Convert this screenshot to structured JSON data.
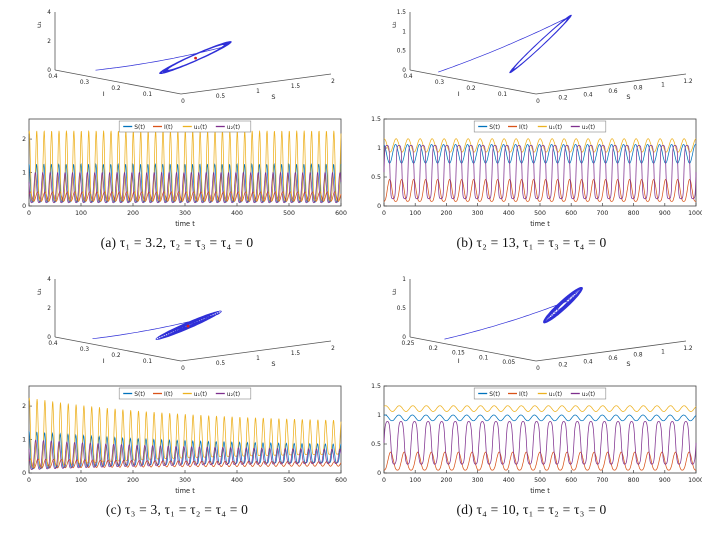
{
  "colors": {
    "series": {
      "S": "#0072BD",
      "I": "#D95319",
      "u1": "#EDB120",
      "u2": "#7E2F8E"
    },
    "trajectory": "#0b0bd0",
    "equilibrium": "#d62020",
    "axis": "#555555",
    "box": "#444444",
    "text": "#222222"
  },
  "legend": {
    "keys": [
      "S",
      "I",
      "u1",
      "u2"
    ],
    "labels": [
      "S(t)",
      "I(t)",
      "u₁(t)",
      "u₂(t)"
    ]
  },
  "chart_data": [
    {
      "panel": "a",
      "caption": "(a) τ₁ = 3.2, τ₂ = τ₃ = τ₄ = 0",
      "phase3d": {
        "type": "line3d",
        "xlabel": "S",
        "ylabel": "I",
        "zlabel": "u₁",
        "x_range": [
          0,
          2
        ],
        "x_ticks": [
          0,
          0.5,
          1,
          1.5,
          2
        ],
        "y_range": [
          0,
          0.4
        ],
        "y_ticks": [
          0.1,
          0.2,
          0.3,
          0.4
        ],
        "z_range": [
          0,
          4
        ],
        "z_ticks": [
          0,
          2,
          4
        ],
        "attractor": {
          "kind": "band",
          "turns": 24,
          "center": [
            0.45,
            0.42,
            0.3
          ],
          "radii": [
            0.27,
            0.16,
            0.22
          ],
          "shear": 0.18,
          "band": 0.1,
          "entry": [
            0.06,
            0.75,
            0.08
          ]
        },
        "equilibrium": [
          0.45,
          0.42,
          0.29
        ]
      },
      "timeseries": {
        "type": "line",
        "xlabel": "time t",
        "x_range": [
          0,
          600
        ],
        "x_ticks": [
          0,
          100,
          200,
          300,
          400,
          500,
          600
        ],
        "y_range": [
          0,
          2.6
        ],
        "y_ticks": [
          0,
          1,
          2
        ],
        "cycles": 42,
        "series": [
          {
            "key": "S",
            "name": "S(t)",
            "min": 0.12,
            "max": 1.25,
            "wave": "spike",
            "sharp": 2.2,
            "phase": 0.0
          },
          {
            "key": "I",
            "name": "I(t)",
            "min": 0.14,
            "max": 0.42,
            "wave": "sine",
            "sharp": 1.0,
            "phase": 0.6
          },
          {
            "key": "u1",
            "name": "u₁(t)",
            "min": 0.15,
            "max": 2.25,
            "wave": "spike",
            "sharp": 2.6,
            "phase": -0.25
          },
          {
            "key": "u2",
            "name": "u₂(t)",
            "min": 0.1,
            "max": 1.0,
            "wave": "spike",
            "sharp": 1.8,
            "phase": 0.9
          }
        ]
      }
    },
    {
      "panel": "b",
      "caption": "(b) τ₂ = 13, τ₁ = τ₃ = τ₄ = 0",
      "phase3d": {
        "type": "line3d",
        "xlabel": "S",
        "ylabel": "I",
        "zlabel": "u₂",
        "x_range": [
          0,
          1.2
        ],
        "x_ticks": [
          0,
          0.2,
          0.4,
          0.6,
          0.8,
          1,
          1.2
        ],
        "y_range": [
          0,
          0.4
        ],
        "y_ticks": [
          0.1,
          0.2,
          0.3,
          0.4
        ],
        "z_range": [
          0,
          1.5
        ],
        "z_ticks": [
          0,
          0.5,
          1,
          1.5
        ],
        "attractor": {
          "kind": "band",
          "turns": 18,
          "center": [
            0.45,
            0.5,
            0.5
          ],
          "radii": [
            0.22,
            0.06,
            0.06
          ],
          "shear": 1.7,
          "band": 0.05,
          "entry": [
            0.02,
            0.8,
            0.04
          ]
        }
      },
      "timeseries": {
        "type": "line",
        "xlabel": "time t",
        "x_range": [
          0,
          1000
        ],
        "x_ticks": [
          0,
          100,
          200,
          300,
          400,
          500,
          600,
          700,
          800,
          900,
          1000
        ],
        "y_range": [
          0,
          1.5
        ],
        "y_ticks": [
          0,
          0.5,
          1,
          1.5
        ],
        "cycles": 26,
        "series": [
          {
            "key": "S",
            "name": "S(t)",
            "min": 0.74,
            "max": 1.06,
            "wave": "sine",
            "sharp": 1.0,
            "phase": 1.8
          },
          {
            "key": "I",
            "name": "I(t)",
            "min": 0.08,
            "max": 0.46,
            "wave": "spike",
            "sharp": 1.5,
            "phase": 3.3
          },
          {
            "key": "u1",
            "name": "u₁(t)",
            "min": 0.93,
            "max": 1.16,
            "wave": "sine",
            "sharp": 1.0,
            "phase": 1.5
          },
          {
            "key": "u2",
            "name": "u₂(t)",
            "min": 0.12,
            "max": 1.05,
            "wave": "square",
            "sharp": 2.5,
            "phase": 0.0
          }
        ]
      }
    },
    {
      "panel": "c",
      "caption": "(c) τ₃ = 3, τ₁ = τ₂ = τ₄ = 0",
      "phase3d": {
        "type": "line3d",
        "xlabel": "S",
        "ylabel": "I",
        "zlabel": "u₁",
        "x_range": [
          0,
          2
        ],
        "x_ticks": [
          0,
          0.5,
          1,
          1.5,
          2
        ],
        "y_range": [
          0,
          0.4
        ],
        "y_ticks": [
          0.1,
          0.2,
          0.3,
          0.4
        ],
        "z_range": [
          0,
          4
        ],
        "z_ticks": [
          0,
          2,
          4
        ],
        "attractor": {
          "kind": "converge",
          "turns": 13,
          "r0": 1.0,
          "r1": 0.12,
          "center": [
            0.4,
            0.42,
            0.3
          ],
          "radii": [
            0.28,
            0.16,
            0.22
          ],
          "shear": 0.18,
          "band": 0.0,
          "entry": [
            0.04,
            0.75,
            0.06
          ]
        },
        "equilibrium": [
          0.4,
          0.42,
          0.29
        ]
      },
      "timeseries": {
        "type": "line",
        "xlabel": "time t",
        "x_range": [
          0,
          600
        ],
        "x_ticks": [
          0,
          100,
          200,
          300,
          400,
          500,
          600
        ],
        "y_range": [
          0,
          2.6
        ],
        "y_ticks": [
          0,
          1,
          2
        ],
        "cycles": 40,
        "decay": {
          "rate": 2.0,
          "floor": 0.4,
          "settle": {
            "S": 0.5,
            "I": 0.26,
            "u1": 0.95,
            "u2": 0.45
          }
        },
        "series": [
          {
            "key": "S",
            "name": "S(t)",
            "min": 0.12,
            "max": 1.25,
            "wave": "spike",
            "sharp": 2.2,
            "phase": 0.0
          },
          {
            "key": "I",
            "name": "I(t)",
            "min": 0.14,
            "max": 0.42,
            "wave": "sine",
            "sharp": 1.0,
            "phase": 0.6
          },
          {
            "key": "u1",
            "name": "u₁(t)",
            "min": 0.15,
            "max": 2.25,
            "wave": "spike",
            "sharp": 2.6,
            "phase": -0.25
          },
          {
            "key": "u2",
            "name": "u₂(t)",
            "min": 0.1,
            "max": 1.0,
            "wave": "spike",
            "sharp": 1.8,
            "phase": 0.9
          }
        ]
      }
    },
    {
      "panel": "d",
      "caption": "(d) τ₄ = 10, τ₁ = τ₂ = τ₃ = 0",
      "phase3d": {
        "type": "line3d",
        "xlabel": "S",
        "ylabel": "I",
        "zlabel": "u₂",
        "x_range": [
          0,
          1.2
        ],
        "x_ticks": [
          0,
          0.2,
          0.4,
          0.6,
          0.8,
          1,
          1.2
        ],
        "y_range": [
          0,
          0.25
        ],
        "y_ticks": [
          0.05,
          0.1,
          0.15,
          0.2,
          0.25
        ],
        "z_range": [
          0,
          1
        ],
        "z_ticks": [
          0,
          0.5,
          1
        ],
        "attractor": {
          "kind": "grow",
          "turns": 16,
          "r0": 0.2,
          "r1": 1.0,
          "rate": 3,
          "center": [
            0.6,
            0.5,
            0.55
          ],
          "radii": [
            0.17,
            0.09,
            0.07
          ],
          "shear": 1.4,
          "band": 0.04,
          "entry": [
            0.02,
            0.75,
            0.06
          ]
        }
      },
      "timeseries": {
        "type": "line",
        "xlabel": "time t",
        "x_range": [
          0,
          1000
        ],
        "x_ticks": [
          0,
          100,
          200,
          300,
          400,
          500,
          600,
          700,
          800,
          900,
          1000
        ],
        "y_range": [
          0,
          1.5
        ],
        "y_ticks": [
          0,
          0.5,
          1,
          1.5
        ],
        "cycles": 23,
        "series": [
          {
            "key": "S",
            "name": "S(t)",
            "min": 0.9,
            "max": 1.0,
            "wave": "sine",
            "sharp": 1.0,
            "phase": 1.0
          },
          {
            "key": "I",
            "name": "I(t)",
            "min": 0.05,
            "max": 0.36,
            "wave": "spike",
            "sharp": 1.4,
            "phase": 3.2
          },
          {
            "key": "u1",
            "name": "u₁(t)",
            "min": 1.06,
            "max": 1.16,
            "wave": "sine",
            "sharp": 1.0,
            "phase": 0.8
          },
          {
            "key": "u2",
            "name": "u₂(t)",
            "min": 0.12,
            "max": 0.92,
            "wave": "square",
            "sharp": 1.6,
            "phase": 0.0
          }
        ]
      }
    }
  ]
}
